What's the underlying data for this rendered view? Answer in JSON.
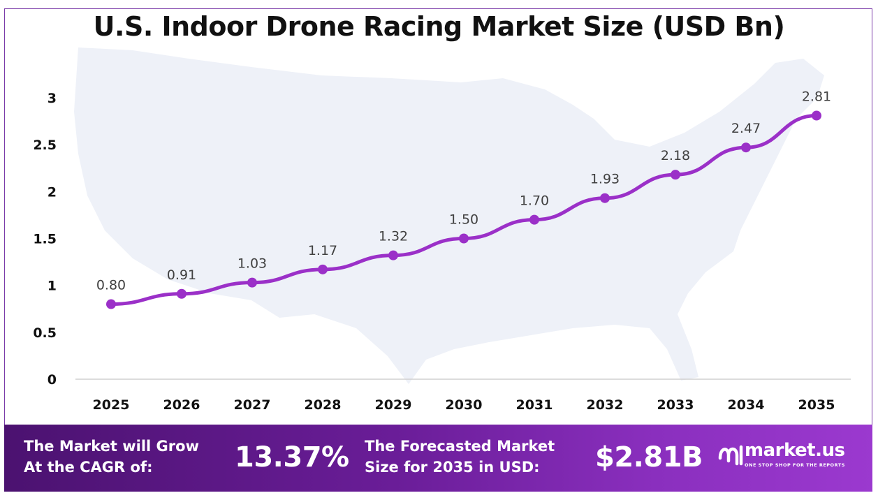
{
  "chart_data": {
    "type": "line",
    "title": "U.S. Indoor Drone Racing Market Size (USD Bn)",
    "categories": [
      "2025",
      "2026",
      "2027",
      "2028",
      "2029",
      "2030",
      "2031",
      "2032",
      "2033",
      "2034",
      "2035"
    ],
    "values": [
      0.8,
      0.91,
      1.03,
      1.17,
      1.32,
      1.5,
      1.7,
      1.93,
      2.18,
      2.47,
      2.81
    ],
    "data_labels": [
      "0.80",
      "0.91",
      "1.03",
      "1.17",
      "1.32",
      "1.50",
      "1.70",
      "1.93",
      "2.18",
      "2.47",
      "2.81"
    ],
    "y_ticks": [
      "0",
      "0.5",
      "1",
      "1.5",
      "2",
      "2.5",
      "3"
    ],
    "ylim": [
      0,
      3
    ],
    "grid": false,
    "line_color": "#9b30c8"
  },
  "footer": {
    "cagr_label_line1": "The Market will Grow",
    "cagr_label_line2": "At the CAGR of:",
    "cagr_value": "13.37%",
    "forecast_label_line1": "The Forecasted Market",
    "forecast_label_line2": "Size for 2035 in USD:",
    "forecast_value": "$2.81B",
    "brand_name": "market.us",
    "brand_tagline": "ONE STOP SHOP FOR THE REPORTS"
  }
}
